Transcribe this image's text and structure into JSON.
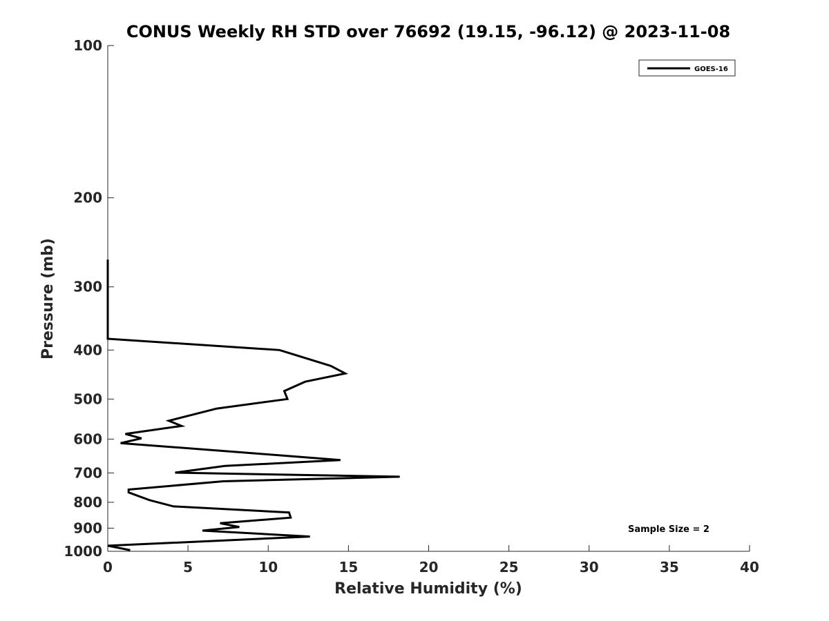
{
  "chart_data": {
    "type": "line",
    "title": "CONUS Weekly RH STD over 76692 (19.15, -96.12) @ 2023-11-08",
    "xlabel": "Relative Humidity (%)",
    "ylabel": "Pressure (mb)",
    "xlim": [
      0,
      40
    ],
    "ylim": [
      100,
      1000
    ],
    "y_scale": "log",
    "y_reversed": true,
    "x_ticks": [
      0,
      5,
      10,
      15,
      20,
      25,
      30,
      35,
      40
    ],
    "y_ticks": [
      100,
      200,
      300,
      400,
      500,
      600,
      700,
      800,
      900,
      1000
    ],
    "grid": false,
    "legend_position": "top-right",
    "annotation": "Sample Size = 2",
    "series": [
      {
        "name": "GOES-16",
        "color": "#000000",
        "points": [
          [
            0,
            265
          ],
          [
            0,
            300
          ],
          [
            0,
            380
          ],
          [
            10.7,
            400
          ],
          [
            13.9,
            430
          ],
          [
            14.8,
            445
          ],
          [
            12.3,
            462
          ],
          [
            11.0,
            482
          ],
          [
            11.2,
            500
          ],
          [
            6.8,
            522
          ],
          [
            3.8,
            552
          ],
          [
            4.6,
            565
          ],
          [
            1.1,
            586
          ],
          [
            2.1,
            598
          ],
          [
            0.8,
            611
          ],
          [
            8.5,
            638
          ],
          [
            14.5,
            660
          ],
          [
            7.3,
            678
          ],
          [
            4.2,
            699
          ],
          [
            18.2,
            712
          ],
          [
            7.2,
            727
          ],
          [
            1.3,
            755
          ],
          [
            1.3,
            765
          ],
          [
            2.6,
            792
          ],
          [
            4.1,
            815
          ],
          [
            11.3,
            838
          ],
          [
            11.4,
            858
          ],
          [
            7.0,
            880
          ],
          [
            8.2,
            895
          ],
          [
            5.9,
            910
          ],
          [
            12.6,
            935
          ],
          [
            0,
            975
          ],
          [
            1.4,
            995
          ]
        ]
      }
    ]
  }
}
